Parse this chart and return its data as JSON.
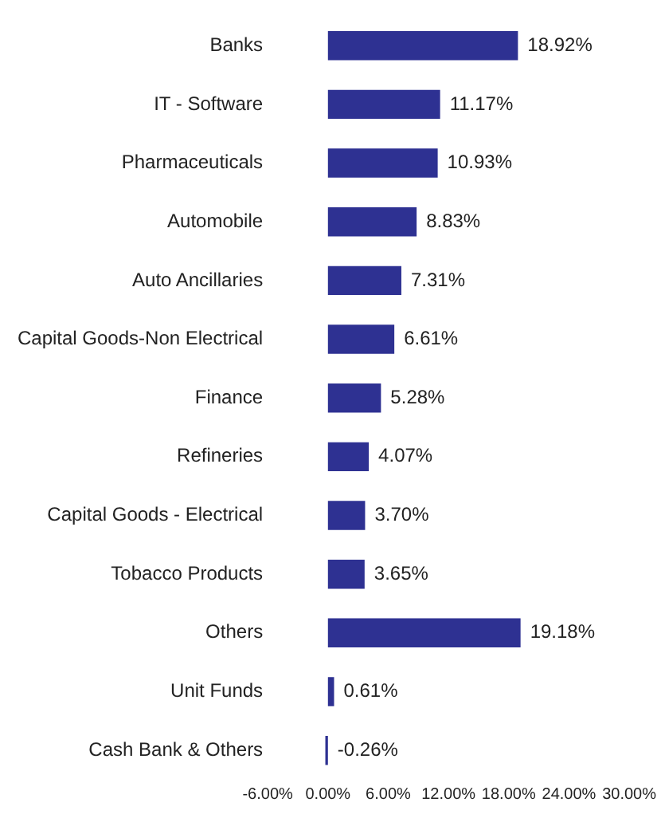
{
  "chart_data": {
    "type": "bar",
    "orientation": "horizontal",
    "categories": [
      "Banks",
      "IT - Software",
      "Pharmaceuticals",
      "Automobile",
      "Auto Ancillaries",
      "Capital Goods-Non Electrical",
      "Finance",
      "Refineries",
      "Capital Goods - Electrical",
      "Tobacco Products",
      "Others",
      "Unit Funds",
      "Cash Bank & Others"
    ],
    "values": [
      18.92,
      11.17,
      10.93,
      8.83,
      7.31,
      6.61,
      5.28,
      4.07,
      3.7,
      3.65,
      19.18,
      0.61,
      -0.26
    ],
    "value_labels": [
      "18.92%",
      "11.17%",
      "10.93%",
      "8.83%",
      "7.31%",
      "6.61%",
      "5.28%",
      "4.07%",
      "3.70%",
      "3.65%",
      "19.18%",
      "0.61%",
      "-0.26%"
    ],
    "color": "#2e3192",
    "xlim": [
      -6,
      30
    ],
    "xticks": [
      {
        "value": -6,
        "label": "-6.00%"
      },
      {
        "value": 0,
        "label": "0.00%"
      },
      {
        "value": 6,
        "label": "6.00%"
      },
      {
        "value": 12,
        "label": "12.00%"
      },
      {
        "value": 18,
        "label": "18.00%"
      },
      {
        "value": 24,
        "label": "24.00%"
      },
      {
        "value": 30,
        "label": "30.00%"
      }
    ],
    "grid": false,
    "legend": false
  }
}
